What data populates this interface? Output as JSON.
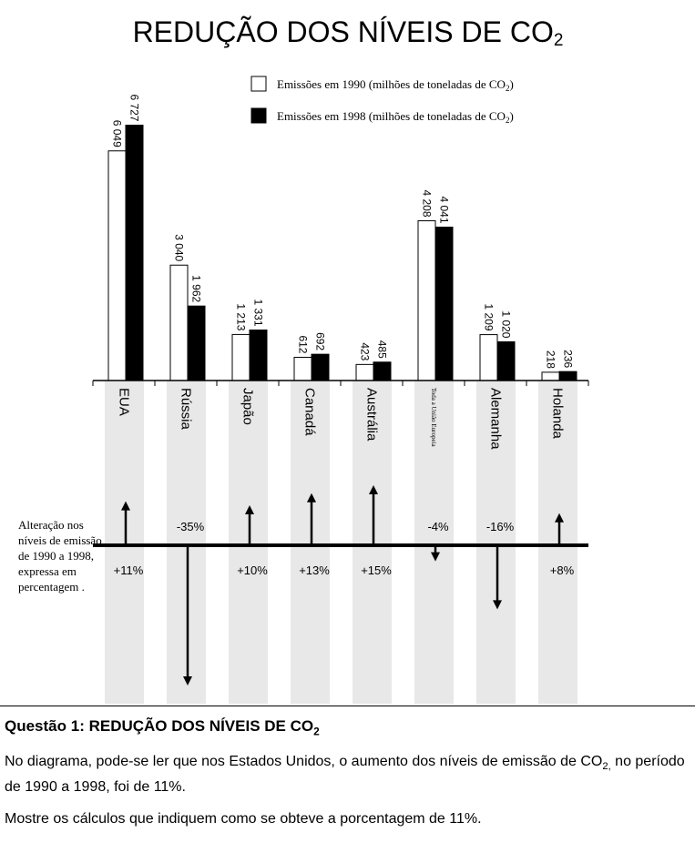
{
  "chart_data": {
    "type": "bar",
    "title": "REDUÇÃO DOS NÍVEIS DE CO",
    "title_sub": "2",
    "categories": [
      "EUA",
      "Rússia",
      "Japão",
      "Canadá",
      "Austrália",
      "Toda a União Europeia",
      "Alemanha",
      "Holanda"
    ],
    "series": [
      {
        "name": "Emissões em 1990 (milhões de toneladas de CO",
        "name_sub": "2",
        "name_end": ")",
        "color": "#ffffff",
        "values": [
          6049,
          3040,
          1213,
          612,
          423,
          4208,
          1209,
          218
        ],
        "labels": [
          "6 049",
          "3 040",
          "1 213",
          "612",
          "423",
          "4 208",
          "1 209",
          "218"
        ]
      },
      {
        "name": "Emissões em 1998 (milhões de toneladas de CO",
        "name_sub": "2",
        "name_end": ")",
        "color": "#000000",
        "values": [
          6727,
          1962,
          1331,
          692,
          485,
          4041,
          1020,
          236
        ],
        "labels": [
          "6 727",
          "1 962",
          "1 331",
          "692",
          "485",
          "4 041",
          "1 020",
          "236"
        ]
      }
    ],
    "ylim": [
      0,
      6800
    ],
    "legend": "top-right",
    "change": {
      "values": [
        11,
        -35,
        10,
        13,
        15,
        -4,
        -16,
        8
      ],
      "labels": [
        "+11%",
        "-35%",
        "+10%",
        "+13%",
        "+15%",
        "-4%",
        "-16%",
        "+8%"
      ]
    },
    "side_label": "Alteração nos níveis de emissão de 1990 a 1998, expressa em percentagem ."
  },
  "question": {
    "title": "Questão 1: REDUÇÃO DOS NÍVEIS DE CO",
    "title_sub": "2",
    "para1_a": "No diagrama, pode-se ler que nos Estados Unidos, o aumento dos níveis de emissão de CO",
    "para1_sub": "2,",
    "para1_b": " no período de 1990 a 1998, foi de 11%.",
    "para2": "Mostre os cálculos que indiquem como se obteve a porcentagem de 11%."
  }
}
